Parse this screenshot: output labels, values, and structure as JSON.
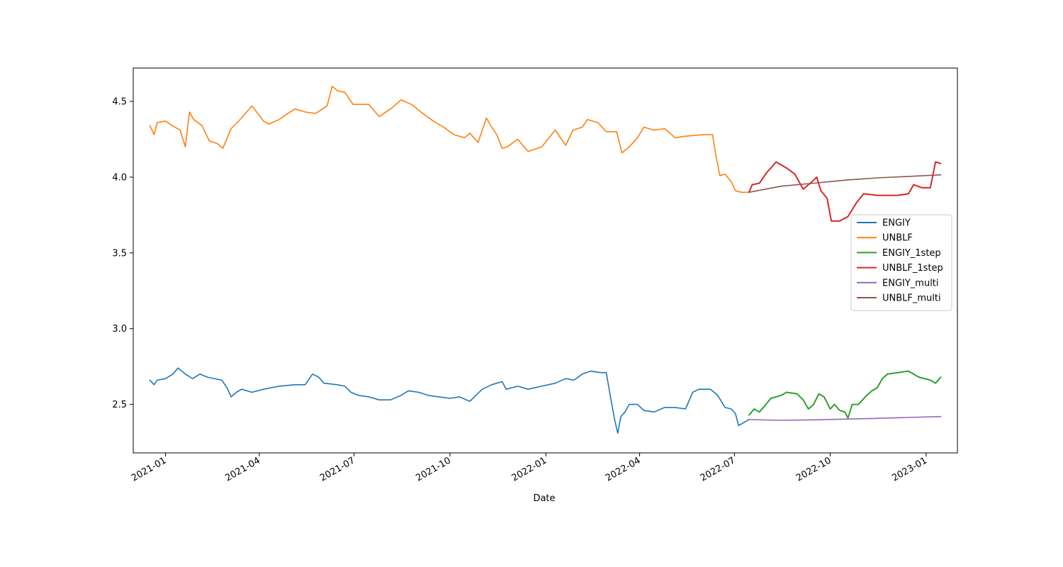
{
  "chart_data": {
    "type": "line",
    "title": "",
    "xlabel": "Date",
    "ylabel": "",
    "x_range": [
      "2020-12-01",
      "2023-01-31"
    ],
    "ylim": [
      2.18,
      4.72
    ],
    "x_ticks": [
      {
        "date": "2021-01-01",
        "label": "2021-01"
      },
      {
        "date": "2021-04-01",
        "label": "2021-04"
      },
      {
        "date": "2021-07-01",
        "label": "2021-07"
      },
      {
        "date": "2021-10-01",
        "label": "2021-10"
      },
      {
        "date": "2022-01-01",
        "label": "2022-01"
      },
      {
        "date": "2022-04-01",
        "label": "2022-04"
      },
      {
        "date": "2022-07-01",
        "label": "2022-07"
      },
      {
        "date": "2022-10-01",
        "label": "2022-10"
      },
      {
        "date": "2023-01-01",
        "label": "2023-01"
      }
    ],
    "y_ticks": [
      2.5,
      3.0,
      3.5,
      4.0,
      4.5
    ],
    "y_tick_labels": [
      "2.5",
      "3.0",
      "3.5",
      "4.0",
      "4.5"
    ],
    "grid": false,
    "legend_position": "center-right",
    "series": [
      {
        "name": "ENGIY",
        "color": "#1f77b4",
        "points": [
          [
            "2020-12-17",
            2.66
          ],
          [
            "2020-12-21",
            2.63
          ],
          [
            "2020-12-24",
            2.66
          ],
          [
            "2021-01-01",
            2.67
          ],
          [
            "2021-01-08",
            2.7
          ],
          [
            "2021-01-13",
            2.74
          ],
          [
            "2021-01-20",
            2.7
          ],
          [
            "2021-01-27",
            2.67
          ],
          [
            "2021-02-03",
            2.7
          ],
          [
            "2021-02-10",
            2.68
          ],
          [
            "2021-02-24",
            2.66
          ],
          [
            "2021-03-01",
            2.61
          ],
          [
            "2021-03-05",
            2.55
          ],
          [
            "2021-03-10",
            2.58
          ],
          [
            "2021-03-15",
            2.6
          ],
          [
            "2021-03-25",
            2.58
          ],
          [
            "2021-04-05",
            2.6
          ],
          [
            "2021-04-20",
            2.62
          ],
          [
            "2021-05-05",
            2.63
          ],
          [
            "2021-05-15",
            2.63
          ],
          [
            "2021-05-22",
            2.7
          ],
          [
            "2021-05-28",
            2.68
          ],
          [
            "2021-06-02",
            2.64
          ],
          [
            "2021-06-15",
            2.63
          ],
          [
            "2021-06-22",
            2.62
          ],
          [
            "2021-06-28",
            2.58
          ],
          [
            "2021-07-05",
            2.56
          ],
          [
            "2021-07-15",
            2.55
          ],
          [
            "2021-07-25",
            2.53
          ],
          [
            "2021-08-05",
            2.53
          ],
          [
            "2021-08-15",
            2.56
          ],
          [
            "2021-08-22",
            2.59
          ],
          [
            "2021-09-01",
            2.58
          ],
          [
            "2021-09-10",
            2.56
          ],
          [
            "2021-09-20",
            2.55
          ],
          [
            "2021-10-01",
            2.54
          ],
          [
            "2021-10-10",
            2.55
          ],
          [
            "2021-10-20",
            2.52
          ],
          [
            "2021-11-01",
            2.6
          ],
          [
            "2021-11-10",
            2.63
          ],
          [
            "2021-11-20",
            2.65
          ],
          [
            "2021-11-24",
            2.6
          ],
          [
            "2021-12-05",
            2.62
          ],
          [
            "2021-12-15",
            2.6
          ],
          [
            "2021-12-28",
            2.62
          ],
          [
            "2022-01-10",
            2.64
          ],
          [
            "2022-01-20",
            2.67
          ],
          [
            "2022-01-28",
            2.66
          ],
          [
            "2022-02-05",
            2.7
          ],
          [
            "2022-02-13",
            2.72
          ],
          [
            "2022-02-22",
            2.71
          ],
          [
            "2022-02-28",
            2.71
          ],
          [
            "2022-03-04",
            2.55
          ],
          [
            "2022-03-08",
            2.4
          ],
          [
            "2022-03-11",
            2.31
          ],
          [
            "2022-03-14",
            2.42
          ],
          [
            "2022-03-18",
            2.45
          ],
          [
            "2022-03-22",
            2.5
          ],
          [
            "2022-03-30",
            2.5
          ],
          [
            "2022-04-05",
            2.46
          ],
          [
            "2022-04-15",
            2.45
          ],
          [
            "2022-04-25",
            2.48
          ],
          [
            "2022-05-05",
            2.48
          ],
          [
            "2022-05-15",
            2.47
          ],
          [
            "2022-05-22",
            2.58
          ],
          [
            "2022-05-28",
            2.6
          ],
          [
            "2022-06-08",
            2.6
          ],
          [
            "2022-06-15",
            2.56
          ],
          [
            "2022-06-22",
            2.48
          ],
          [
            "2022-06-28",
            2.47
          ],
          [
            "2022-07-02",
            2.44
          ],
          [
            "2022-07-05",
            2.36
          ],
          [
            "2022-07-10",
            2.38
          ],
          [
            "2022-07-15",
            2.4
          ]
        ]
      },
      {
        "name": "UNBLF",
        "color": "#ff7f0e",
        "points": [
          [
            "2020-12-17",
            4.34
          ],
          [
            "2020-12-21",
            4.28
          ],
          [
            "2020-12-24",
            4.36
          ],
          [
            "2021-01-01",
            4.37
          ],
          [
            "2021-01-05",
            4.35
          ],
          [
            "2021-01-10",
            4.33
          ],
          [
            "2021-01-15",
            4.31
          ],
          [
            "2021-01-20",
            4.2
          ],
          [
            "2021-01-24",
            4.43
          ],
          [
            "2021-01-28",
            4.38
          ],
          [
            "2021-02-05",
            4.34
          ],
          [
            "2021-02-12",
            4.24
          ],
          [
            "2021-02-20",
            4.22
          ],
          [
            "2021-02-25",
            4.19
          ],
          [
            "2021-03-05",
            4.32
          ],
          [
            "2021-03-15",
            4.39
          ],
          [
            "2021-03-25",
            4.47
          ],
          [
            "2021-04-05",
            4.37
          ],
          [
            "2021-04-10",
            4.35
          ],
          [
            "2021-04-20",
            4.38
          ],
          [
            "2021-05-05",
            4.45
          ],
          [
            "2021-05-15",
            4.43
          ],
          [
            "2021-05-25",
            4.42
          ],
          [
            "2021-06-05",
            4.47
          ],
          [
            "2021-06-10",
            4.6
          ],
          [
            "2021-06-15",
            4.57
          ],
          [
            "2021-06-22",
            4.56
          ],
          [
            "2021-06-30",
            4.48
          ],
          [
            "2021-07-15",
            4.48
          ],
          [
            "2021-07-25",
            4.4
          ],
          [
            "2021-08-05",
            4.45
          ],
          [
            "2021-08-15",
            4.51
          ],
          [
            "2021-08-25",
            4.48
          ],
          [
            "2021-09-05",
            4.42
          ],
          [
            "2021-09-15",
            4.37
          ],
          [
            "2021-09-25",
            4.33
          ],
          [
            "2021-10-05",
            4.28
          ],
          [
            "2021-10-15",
            4.26
          ],
          [
            "2021-10-20",
            4.29
          ],
          [
            "2021-10-28",
            4.23
          ],
          [
            "2021-11-05",
            4.39
          ],
          [
            "2021-11-10",
            4.33
          ],
          [
            "2021-11-15",
            4.28
          ],
          [
            "2021-11-20",
            4.19
          ],
          [
            "2021-11-25",
            4.2
          ],
          [
            "2021-12-05",
            4.25
          ],
          [
            "2021-12-15",
            4.17
          ],
          [
            "2021-12-28",
            4.2
          ],
          [
            "2022-01-10",
            4.31
          ],
          [
            "2022-01-20",
            4.21
          ],
          [
            "2022-01-27",
            4.31
          ],
          [
            "2022-02-05",
            4.33
          ],
          [
            "2022-02-10",
            4.38
          ],
          [
            "2022-02-20",
            4.36
          ],
          [
            "2022-02-28",
            4.3
          ],
          [
            "2022-03-10",
            4.3
          ],
          [
            "2022-03-15",
            4.16
          ],
          [
            "2022-03-22",
            4.2
          ],
          [
            "2022-03-30",
            4.26
          ],
          [
            "2022-04-05",
            4.33
          ],
          [
            "2022-04-15",
            4.31
          ],
          [
            "2022-04-25",
            4.32
          ],
          [
            "2022-05-05",
            4.26
          ],
          [
            "2022-05-15",
            4.27
          ],
          [
            "2022-06-01",
            4.28
          ],
          [
            "2022-06-10",
            4.28
          ],
          [
            "2022-06-13",
            4.15
          ],
          [
            "2022-06-17",
            4.01
          ],
          [
            "2022-06-22",
            4.02
          ],
          [
            "2022-06-28",
            3.97
          ],
          [
            "2022-07-02",
            3.91
          ],
          [
            "2022-07-08",
            3.9
          ],
          [
            "2022-07-15",
            3.9
          ]
        ]
      },
      {
        "name": "ENGIY_1step",
        "color": "#2ca02c",
        "points": [
          [
            "2022-07-15",
            2.43
          ],
          [
            "2022-07-20",
            2.47
          ],
          [
            "2022-07-25",
            2.45
          ],
          [
            "2022-07-30",
            2.49
          ],
          [
            "2022-08-05",
            2.54
          ],
          [
            "2022-08-15",
            2.56
          ],
          [
            "2022-08-20",
            2.58
          ],
          [
            "2022-08-30",
            2.57
          ],
          [
            "2022-09-05",
            2.53
          ],
          [
            "2022-09-10",
            2.47
          ],
          [
            "2022-09-15",
            2.5
          ],
          [
            "2022-09-20",
            2.57
          ],
          [
            "2022-09-25",
            2.55
          ],
          [
            "2022-10-01",
            2.47
          ],
          [
            "2022-10-05",
            2.5
          ],
          [
            "2022-10-10",
            2.46
          ],
          [
            "2022-10-15",
            2.45
          ],
          [
            "2022-10-18",
            2.41
          ],
          [
            "2022-10-22",
            2.5
          ],
          [
            "2022-10-28",
            2.5
          ],
          [
            "2022-11-05",
            2.56
          ],
          [
            "2022-11-10",
            2.59
          ],
          [
            "2022-11-15",
            2.61
          ],
          [
            "2022-11-20",
            2.67
          ],
          [
            "2022-11-25",
            2.7
          ],
          [
            "2022-12-05",
            2.71
          ],
          [
            "2022-12-15",
            2.72
          ],
          [
            "2022-12-25",
            2.68
          ],
          [
            "2023-01-05",
            2.66
          ],
          [
            "2023-01-10",
            2.64
          ],
          [
            "2023-01-15",
            2.68
          ]
        ]
      },
      {
        "name": "UNBLF_1step",
        "color": "#d62728",
        "points": [
          [
            "2022-07-15",
            3.9
          ],
          [
            "2022-07-18",
            3.95
          ],
          [
            "2022-07-25",
            3.96
          ],
          [
            "2022-08-01",
            4.03
          ],
          [
            "2022-08-05",
            4.06
          ],
          [
            "2022-08-10",
            4.1
          ],
          [
            "2022-08-20",
            4.06
          ],
          [
            "2022-08-28",
            4.02
          ],
          [
            "2022-09-05",
            3.92
          ],
          [
            "2022-09-15",
            3.98
          ],
          [
            "2022-09-18",
            4.0
          ],
          [
            "2022-09-22",
            3.91
          ],
          [
            "2022-09-28",
            3.86
          ],
          [
            "2022-10-02",
            3.71
          ],
          [
            "2022-10-10",
            3.71
          ],
          [
            "2022-10-18",
            3.74
          ],
          [
            "2022-10-26",
            3.83
          ],
          [
            "2022-11-02",
            3.89
          ],
          [
            "2022-11-15",
            3.88
          ],
          [
            "2022-12-05",
            3.88
          ],
          [
            "2022-12-15",
            3.89
          ],
          [
            "2022-12-20",
            3.95
          ],
          [
            "2022-12-28",
            3.93
          ],
          [
            "2023-01-05",
            3.93
          ],
          [
            "2023-01-10",
            4.1
          ],
          [
            "2023-01-15",
            4.09
          ]
        ]
      },
      {
        "name": "ENGIY_multi",
        "color": "#9467bd",
        "points": [
          [
            "2022-07-15",
            2.4
          ],
          [
            "2022-08-15",
            2.395
          ],
          [
            "2022-09-15",
            2.398
          ],
          [
            "2022-10-15",
            2.403
          ],
          [
            "2022-11-15",
            2.408
          ],
          [
            "2022-12-15",
            2.414
          ],
          [
            "2023-01-15",
            2.42
          ]
        ]
      },
      {
        "name": "UNBLF_multi",
        "color": "#8c564b",
        "points": [
          [
            "2022-07-15",
            3.9
          ],
          [
            "2022-08-15",
            3.94
          ],
          [
            "2022-09-15",
            3.96
          ],
          [
            "2022-10-15",
            3.98
          ],
          [
            "2022-11-15",
            3.995
          ],
          [
            "2022-12-15",
            4.005
          ],
          [
            "2023-01-15",
            4.015
          ]
        ]
      }
    ]
  }
}
